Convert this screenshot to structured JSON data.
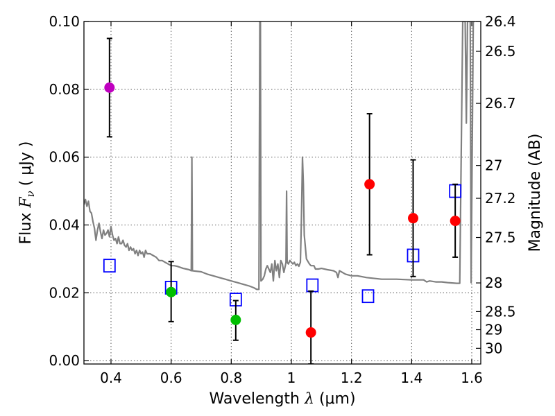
{
  "chart_data": {
    "type": "scatter",
    "xlabel": "Wavelength",
    "xlabel_symbol": "λ",
    "xlabel_unit": "(μm)",
    "ylabel": "Flux",
    "ylabel_symbol": "F",
    "ylabel_subscript": "ν",
    "ylabel_unit": "( μJy )",
    "ylabel_right": "Magnitude (AB)",
    "xlim": [
      0.31,
      1.63
    ],
    "ylim": [
      -0.001,
      0.1
    ],
    "grid": true,
    "x_ticks": [
      0.4,
      0.6,
      0.8,
      1.0,
      1.2,
      1.4,
      1.6
    ],
    "x_tick_labels": [
      "0.4",
      "0.6",
      "0.8",
      "1",
      "1.2",
      "1.4",
      "1.6"
    ],
    "y_ticks": [
      0.0,
      0.02,
      0.04,
      0.06,
      0.08,
      0.1
    ],
    "y_tick_labels": [
      "0.00",
      "0.02",
      "0.04",
      "0.06",
      "0.08",
      "0.10"
    ],
    "right_ticks": [
      {
        "mag": 26.4,
        "label": "26.4"
      },
      {
        "mag": 26.5,
        "label": "26.5"
      },
      {
        "mag": 26.7,
        "label": "26.7"
      },
      {
        "mag": 27.0,
        "label": "27"
      },
      {
        "mag": 27.2,
        "label": "27.2"
      },
      {
        "mag": 27.5,
        "label": "27.5"
      },
      {
        "mag": 28.0,
        "label": "28"
      },
      {
        "mag": 28.5,
        "label": "28.5"
      },
      {
        "mag": 29.0,
        "label": "29"
      },
      {
        "mag": 30.0,
        "label": "30"
      }
    ],
    "colors": {
      "model": "#808080",
      "purple": "#bf00bf",
      "green": "#00bf00",
      "red": "#ff0000",
      "model_box": "#0000ff",
      "errorbar": "#000000",
      "grid": "#555555"
    },
    "series": [
      {
        "name": "model_spectrum",
        "type": "line",
        "points": [
          [
            0.31,
            0.046
          ],
          [
            0.315,
            0.0475
          ],
          [
            0.32,
            0.0455
          ],
          [
            0.325,
            0.047
          ],
          [
            0.33,
            0.044
          ],
          [
            0.335,
            0.0435
          ],
          [
            0.34,
            0.041
          ],
          [
            0.345,
            0.039
          ],
          [
            0.35,
            0.0355
          ],
          [
            0.355,
            0.0385
          ],
          [
            0.36,
            0.0405
          ],
          [
            0.365,
            0.038
          ],
          [
            0.37,
            0.036
          ],
          [
            0.375,
            0.0385
          ],
          [
            0.38,
            0.037
          ],
          [
            0.385,
            0.0375
          ],
          [
            0.39,
            0.0385
          ],
          [
            0.395,
            0.0365
          ],
          [
            0.4,
            0.0395
          ],
          [
            0.405,
            0.037
          ],
          [
            0.41,
            0.0355
          ],
          [
            0.415,
            0.036
          ],
          [
            0.42,
            0.0345
          ],
          [
            0.425,
            0.0365
          ],
          [
            0.43,
            0.0345
          ],
          [
            0.435,
            0.0345
          ],
          [
            0.44,
            0.0355
          ],
          [
            0.445,
            0.034
          ],
          [
            0.45,
            0.0335
          ],
          [
            0.455,
            0.0345
          ],
          [
            0.46,
            0.0325
          ],
          [
            0.465,
            0.0335
          ],
          [
            0.47,
            0.0325
          ],
          [
            0.475,
            0.033
          ],
          [
            0.48,
            0.0315
          ],
          [
            0.485,
            0.0325
          ],
          [
            0.49,
            0.031
          ],
          [
            0.495,
            0.0325
          ],
          [
            0.5,
            0.0315
          ],
          [
            0.505,
            0.032
          ],
          [
            0.51,
            0.0305
          ],
          [
            0.515,
            0.0325
          ],
          [
            0.52,
            0.0315
          ],
          [
            0.53,
            0.0315
          ],
          [
            0.54,
            0.031
          ],
          [
            0.55,
            0.0305
          ],
          [
            0.56,
            0.0295
          ],
          [
            0.57,
            0.0295
          ],
          [
            0.58,
            0.029
          ],
          [
            0.59,
            0.0285
          ],
          [
            0.6,
            0.028
          ],
          [
            0.61,
            0.028
          ],
          [
            0.62,
            0.0278
          ],
          [
            0.63,
            0.0275
          ],
          [
            0.64,
            0.0272
          ],
          [
            0.65,
            0.027
          ],
          [
            0.66,
            0.0268
          ],
          [
            0.667,
            0.0265
          ],
          [
            0.669,
            0.06
          ],
          [
            0.671,
            0.0265
          ],
          [
            0.68,
            0.0264
          ],
          [
            0.7,
            0.0262
          ],
          [
            0.72,
            0.0255
          ],
          [
            0.74,
            0.025
          ],
          [
            0.76,
            0.0245
          ],
          [
            0.78,
            0.024
          ],
          [
            0.8,
            0.0235
          ],
          [
            0.82,
            0.023
          ],
          [
            0.84,
            0.0225
          ],
          [
            0.86,
            0.022
          ],
          [
            0.875,
            0.0215
          ],
          [
            0.885,
            0.021
          ],
          [
            0.892,
            0.021
          ],
          [
            0.895,
            0.1
          ],
          [
            0.897,
            0.1
          ],
          [
            0.899,
            0.0235
          ],
          [
            0.905,
            0.024
          ],
          [
            0.91,
            0.025
          ],
          [
            0.915,
            0.027
          ],
          [
            0.92,
            0.028
          ],
          [
            0.925,
            0.027
          ],
          [
            0.93,
            0.026
          ],
          [
            0.935,
            0.0285
          ],
          [
            0.94,
            0.0235
          ],
          [
            0.945,
            0.0295
          ],
          [
            0.95,
            0.0265
          ],
          [
            0.955,
            0.0285
          ],
          [
            0.96,
            0.0245
          ],
          [
            0.965,
            0.0295
          ],
          [
            0.97,
            0.0285
          ],
          [
            0.975,
            0.026
          ],
          [
            0.98,
            0.028
          ],
          [
            0.982,
            0.029
          ],
          [
            0.984,
            0.05
          ],
          [
            0.986,
            0.029
          ],
          [
            0.99,
            0.0285
          ],
          [
            0.995,
            0.0295
          ],
          [
            1.0,
            0.029
          ],
          [
            1.005,
            0.0285
          ],
          [
            1.01,
            0.029
          ],
          [
            1.015,
            0.028
          ],
          [
            1.02,
            0.0285
          ],
          [
            1.025,
            0.0278
          ],
          [
            1.03,
            0.029
          ],
          [
            1.033,
            0.04
          ],
          [
            1.037,
            0.06
          ],
          [
            1.04,
            0.052
          ],
          [
            1.043,
            0.037
          ],
          [
            1.05,
            0.03
          ],
          [
            1.06,
            0.0285
          ],
          [
            1.065,
            0.028
          ],
          [
            1.075,
            0.028
          ],
          [
            1.08,
            0.027
          ],
          [
            1.09,
            0.027
          ],
          [
            1.1,
            0.0272
          ],
          [
            1.12,
            0.0268
          ],
          [
            1.14,
            0.0265
          ],
          [
            1.15,
            0.026
          ],
          [
            1.155,
            0.0245
          ],
          [
            1.16,
            0.0265
          ],
          [
            1.18,
            0.0255
          ],
          [
            1.2,
            0.025
          ],
          [
            1.22,
            0.025
          ],
          [
            1.25,
            0.0245
          ],
          [
            1.3,
            0.024
          ],
          [
            1.35,
            0.024
          ],
          [
            1.4,
            0.0238
          ],
          [
            1.44,
            0.0238
          ],
          [
            1.45,
            0.0232
          ],
          [
            1.46,
            0.0235
          ],
          [
            1.48,
            0.0232
          ],
          [
            1.5,
            0.0232
          ],
          [
            1.52,
            0.023
          ],
          [
            1.55,
            0.0228
          ],
          [
            1.56,
            0.0228
          ],
          [
            1.57,
            0.1
          ],
          [
            1.578,
            0.1
          ],
          [
            1.582,
            0.07
          ],
          [
            1.586,
            0.1
          ],
          [
            1.595,
            0.1
          ],
          [
            1.598,
            0.023
          ],
          [
            1.605,
            0.1
          ],
          [
            1.61,
            0.1
          ]
        ]
      },
      {
        "name": "model_photometry",
        "type": "scatter",
        "marker": "square",
        "color": "#0000ff",
        "x": [
          0.395,
          0.6,
          0.815,
          1.07,
          1.255,
          1.405,
          1.545
        ],
        "y": [
          0.028,
          0.0215,
          0.018,
          0.0222,
          0.019,
          0.031,
          0.05
        ]
      },
      {
        "name": "observed",
        "type": "scatter",
        "marker": "circle",
        "points": [
          {
            "x": 0.395,
            "y": 0.0805,
            "yerr_low": 0.066,
            "yerr_high": 0.095,
            "color": "#bf00bf"
          },
          {
            "x": 0.6,
            "y": 0.0202,
            "yerr_low": 0.0115,
            "yerr_high": 0.0292,
            "color": "#00bf00"
          },
          {
            "x": 0.815,
            "y": 0.012,
            "yerr_low": 0.006,
            "yerr_high": 0.0177,
            "color": "#00bf00"
          },
          {
            "x": 1.065,
            "y": 0.0083,
            "yerr_low": -0.001,
            "yerr_high": 0.0205,
            "color": "#ff0000"
          },
          {
            "x": 1.26,
            "y": 0.052,
            "yerr_low": 0.0312,
            "yerr_high": 0.0728,
            "color": "#ff0000"
          },
          {
            "x": 1.405,
            "y": 0.042,
            "yerr_low": 0.0248,
            "yerr_high": 0.0592,
            "color": "#ff0000"
          },
          {
            "x": 1.545,
            "y": 0.0412,
            "yerr_low": 0.0305,
            "yerr_high": 0.052,
            "color": "#ff0000"
          }
        ]
      }
    ]
  }
}
